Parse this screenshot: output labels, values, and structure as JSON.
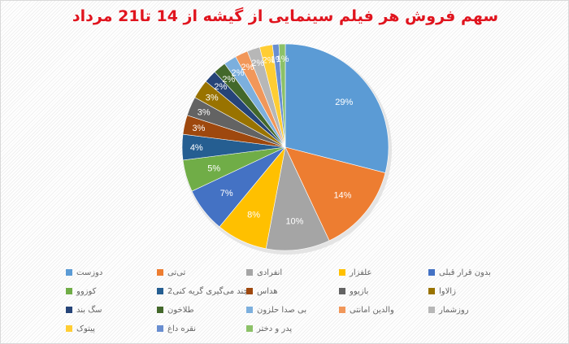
{
  "title": "سهم فروش هر فیلم سینمایی از گیشه از 14 تا21 مرداد",
  "chart_data": {
    "type": "pie",
    "title": "سهم فروش هر فیلم سینمایی از گیشه از 14 تا21 مرداد",
    "legend_position": "bottom",
    "categories": [
      "دوزست",
      "تی‌تی",
      "انفرادی",
      "علفزار",
      "بدون قرار قبلی",
      "کوزوو",
      "چند می‌گیری گریه کنی2",
      "هداس",
      "بازیوو",
      "زالاوا",
      "سگ بند",
      "طلاخون",
      "بی صدا حلزون",
      "والدین امانتی",
      "روزشمار",
      "پیتوک",
      "نقره داغ",
      "پدر و دختر"
    ],
    "values": [
      29,
      14,
      10,
      8,
      7,
      5,
      4,
      3,
      3,
      3,
      2,
      2,
      2,
      2,
      2,
      2,
      1,
      1
    ],
    "labels": [
      "29%",
      "14%",
      "10%",
      "8%",
      "7%",
      "5%",
      "4%",
      "3%",
      "3%",
      "3%",
      "2%",
      "2%",
      "2%",
      "2%",
      "2%",
      "2%",
      "1%",
      "1%"
    ],
    "colors": [
      "#5b9bd5",
      "#ed7d31",
      "#a5a5a5",
      "#ffc000",
      "#4472c4",
      "#70ad47",
      "#255e91",
      "#9e480e",
      "#636363",
      "#997300",
      "#264478",
      "#43682b",
      "#7cafdd",
      "#f1975a",
      "#b7b7b7",
      "#ffcd33",
      "#698ed0",
      "#8cc168"
    ]
  },
  "legend": {
    "items": [
      {
        "label": "دوزست",
        "color": "#5b9bd5"
      },
      {
        "label": "تی‌تی",
        "color": "#ed7d31"
      },
      {
        "label": "انفرادی",
        "color": "#a5a5a5"
      },
      {
        "label": "علفزار",
        "color": "#ffc000"
      },
      {
        "label": "بدون قرار قبلی",
        "color": "#4472c4"
      },
      {
        "label": "کوزوو",
        "color": "#70ad47"
      },
      {
        "label": "چند می‌گیری گریه کنی2",
        "color": "#255e91"
      },
      {
        "label": "هداس",
        "color": "#9e480e"
      },
      {
        "label": "بازیوو",
        "color": "#636363"
      },
      {
        "label": "زالاوا",
        "color": "#997300"
      },
      {
        "label": "سگ بند",
        "color": "#264478"
      },
      {
        "label": "طلاخون",
        "color": "#43682b"
      },
      {
        "label": "بی صدا حلزون",
        "color": "#7cafdd"
      },
      {
        "label": "والدین امانتی",
        "color": "#f1975a"
      },
      {
        "label": "روزشمار",
        "color": "#b7b7b7"
      },
      {
        "label": "پیتوک",
        "color": "#ffcd33"
      },
      {
        "label": "نقره داغ",
        "color": "#698ed0"
      },
      {
        "label": "پدر و دختر",
        "color": "#8cc168"
      }
    ]
  }
}
